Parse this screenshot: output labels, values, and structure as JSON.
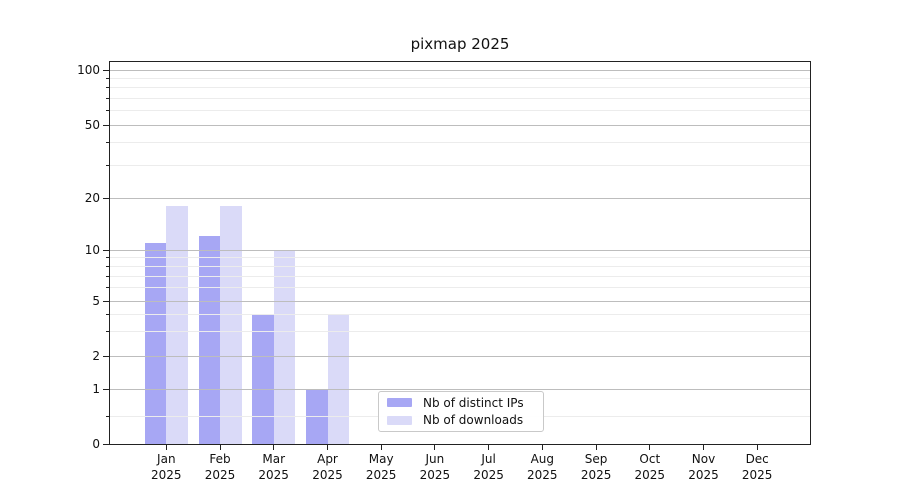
{
  "chart_data": {
    "type": "bar",
    "title": "pixmap 2025",
    "categories": [
      "Jan",
      "Feb",
      "Mar",
      "Apr",
      "May",
      "Jun",
      "Jul",
      "Aug",
      "Sep",
      "Oct",
      "Nov",
      "Dec"
    ],
    "category_year": "2025",
    "series": [
      {
        "name": "Nb of distinct IPs",
        "color": "#a7a7f4",
        "values": [
          11,
          12,
          4,
          1,
          0,
          0,
          0,
          0,
          0,
          0,
          0,
          0
        ]
      },
      {
        "name": "Nb of downloads",
        "color": "#dadaf8",
        "values": [
          18,
          18,
          10,
          4,
          0,
          0,
          0,
          0,
          0,
          0,
          0,
          0
        ]
      }
    ],
    "yscale": "symlog",
    "ylim": [
      0,
      110
    ],
    "yticks": [
      0,
      1,
      2,
      5,
      10,
      20,
      50,
      100
    ],
    "yticks_minor": [
      0.5,
      3,
      4,
      6,
      7,
      8,
      9,
      30,
      40,
      60,
      70,
      80,
      90
    ],
    "xlabel": "",
    "ylabel": "",
    "grid": "horizontal",
    "legend_position": "lower center"
  },
  "colors": {
    "background": "#ffffff",
    "axis": "#222222",
    "grid_major": "#bdbdbd",
    "grid_minor": "#ececec"
  }
}
